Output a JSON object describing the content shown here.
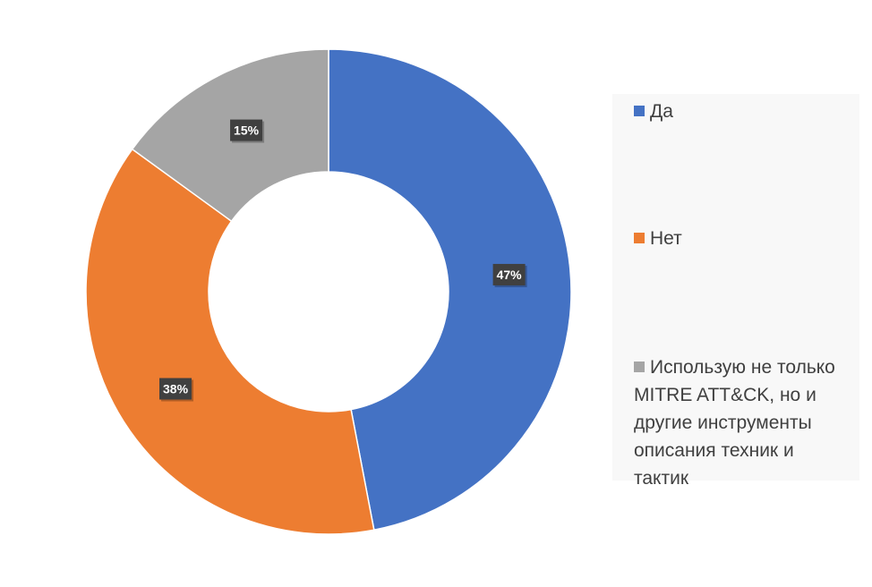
{
  "chart_data": {
    "type": "pie",
    "style": "donut",
    "categories": [
      "Да",
      "Нет",
      "Использую не только MITRE ATT&CK, но и другие инструменты описания техник и тактик"
    ],
    "values": [
      47,
      38,
      15
    ],
    "data_labels": [
      "47%",
      "38%",
      "15%"
    ],
    "colors": [
      "#4472C4",
      "#ED7D31",
      "#A5A5A5"
    ],
    "start_angle_deg": 0,
    "direction": "clockwise",
    "legend": "right",
    "title": "",
    "label_box_color": "#404040"
  }
}
